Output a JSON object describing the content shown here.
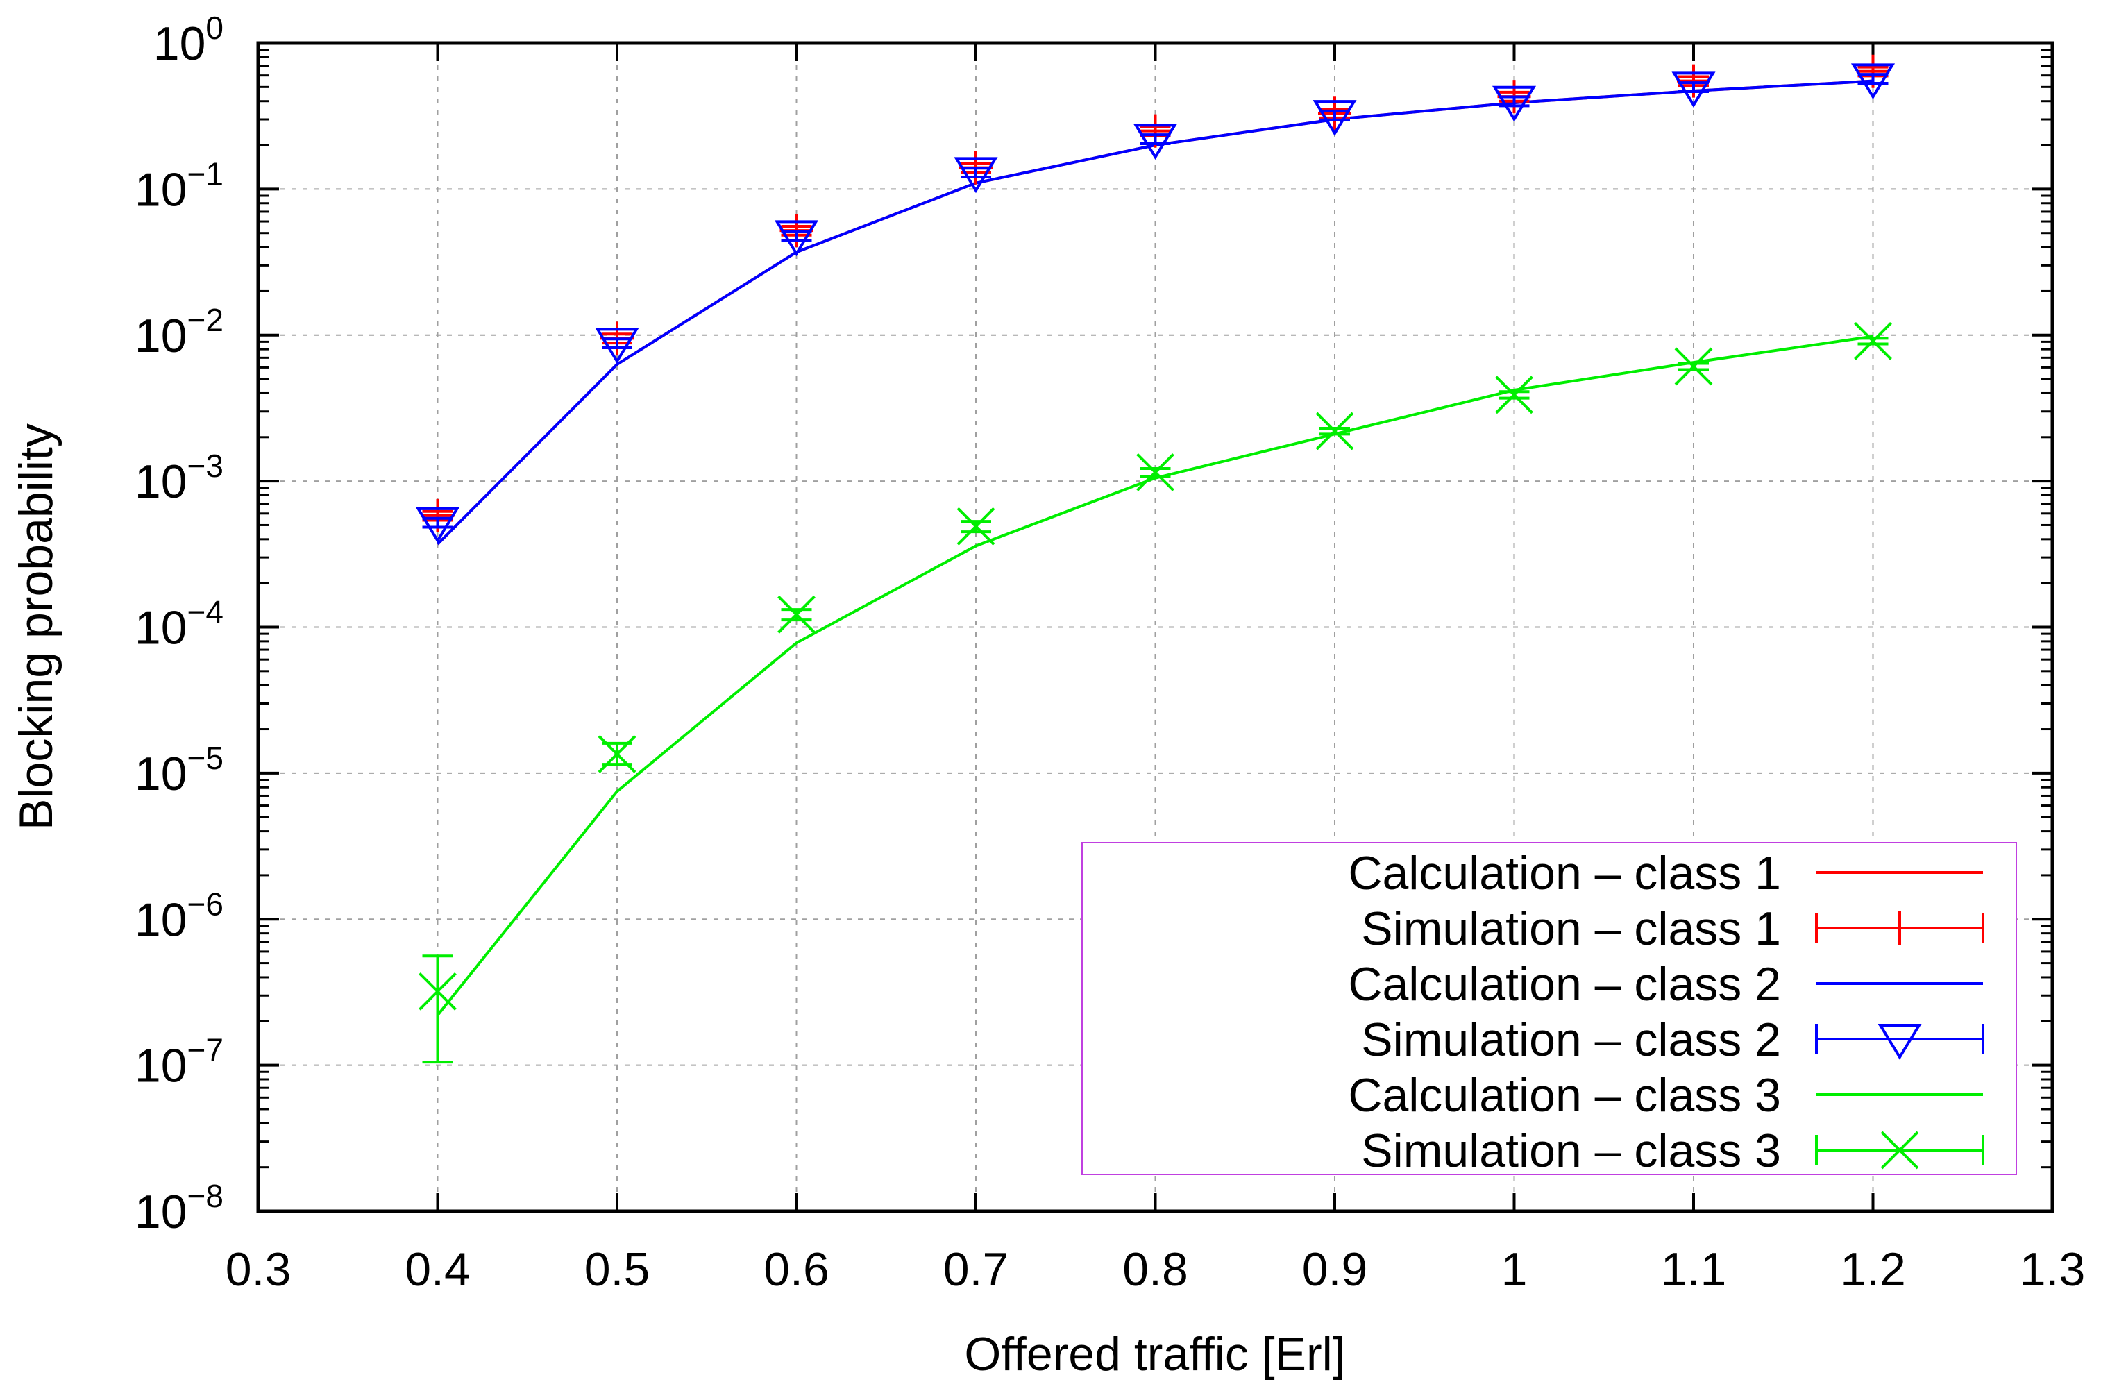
{
  "chart_data": {
    "type": "line",
    "title": "",
    "xlabel": "Offered traffic [Erl]",
    "ylabel": "Blocking probability",
    "xlim": [
      0.3,
      1.3
    ],
    "ylim": [
      1e-08,
      1
    ],
    "yscale": "log",
    "grid": true,
    "legend_position": "bottom-right",
    "x_ticks": [
      "0.3",
      "0.4",
      "0.5",
      "0.6",
      "0.7",
      "0.8",
      "0.9",
      "1",
      "1.1",
      "1.2",
      "1.3"
    ],
    "y_ticks": [
      {
        "base": "10",
        "exp": "0"
      },
      {
        "base": "10",
        "exp": "−1"
      },
      {
        "base": "10",
        "exp": "−2"
      },
      {
        "base": "10",
        "exp": "−3"
      },
      {
        "base": "10",
        "exp": "−4"
      },
      {
        "base": "10",
        "exp": "−5"
      },
      {
        "base": "10",
        "exp": "−6"
      },
      {
        "base": "10",
        "exp": "−7"
      },
      {
        "base": "10",
        "exp": "−8"
      }
    ],
    "x": [
      0.4,
      0.5,
      0.6,
      0.7,
      0.8,
      0.9,
      1.0,
      1.1,
      1.2
    ],
    "series": [
      {
        "name": "Calculation – class 1",
        "kind": "line",
        "color": "#ff0000",
        "values": [
          0.00037,
          0.0063,
          0.037,
          0.11,
          0.2,
          0.3,
          0.39,
          0.47,
          0.55
        ]
      },
      {
        "name": "Simulation – class 1",
        "kind": "errorbar",
        "marker": "plus",
        "color": "#ff0000",
        "values": [
          0.00058,
          0.0095,
          0.052,
          0.14,
          0.25,
          0.33,
          0.43,
          0.55,
          0.64
        ]
      },
      {
        "name": "Calculation – class 2",
        "kind": "line",
        "color": "#0000ff",
        "values": [
          0.00037,
          0.0063,
          0.037,
          0.11,
          0.2,
          0.3,
          0.39,
          0.47,
          0.55
        ]
      },
      {
        "name": "Simulation – class 2",
        "kind": "errorbar",
        "marker": "triangle-down",
        "color": "#0000ff",
        "values": [
          0.00052,
          0.0088,
          0.048,
          0.13,
          0.22,
          0.32,
          0.4,
          0.5,
          0.57
        ]
      },
      {
        "name": "Calculation – class 3",
        "kind": "line",
        "color": "#00ee00",
        "values": [
          2.2e-07,
          7.5e-06,
          7.8e-05,
          0.00036,
          0.00105,
          0.0021,
          0.0042,
          0.0065,
          0.0098
        ]
      },
      {
        "name": "Simulation – class 3",
        "kind": "errorbar",
        "marker": "cross",
        "color": "#00ee00",
        "values": [
          3.2e-07,
          1.35e-05,
          0.000122,
          0.00049,
          0.00115,
          0.0022,
          0.0039,
          0.0061,
          0.0091
        ],
        "lower": [
          1.05e-07,
          1.15e-05,
          0.000112,
          0.00045,
          0.00108,
          0.0021,
          0.0037,
          0.0058,
          0.0087
        ],
        "upper": [
          5.6e-07,
          1.6e-05,
          0.000132,
          0.00053,
          0.00122,
          0.0023,
          0.0041,
          0.0064,
          0.0095
        ]
      }
    ]
  }
}
